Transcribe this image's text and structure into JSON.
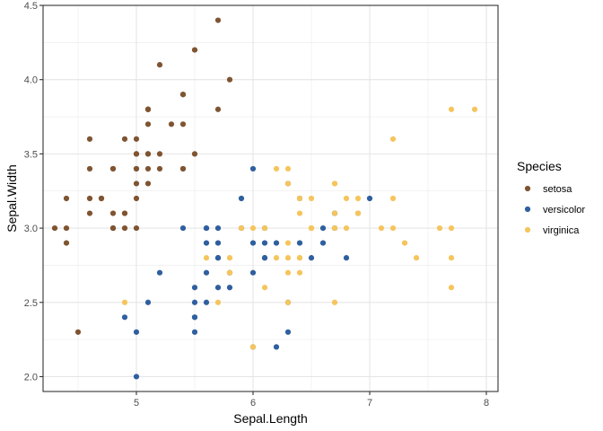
{
  "chart_data": {
    "type": "scatter",
    "xlabel": "Sepal.Length",
    "ylabel": "Sepal.Width",
    "xlim": [
      4.2,
      8.1
    ],
    "ylim": [
      1.9,
      4.5
    ],
    "x_ticks": [
      "5",
      "6",
      "7",
      "8"
    ],
    "y_ticks": [
      "2.0",
      "2.5",
      "3.0",
      "3.5",
      "4.0",
      "4.5"
    ],
    "grid": true,
    "legend": {
      "title": "Species",
      "position": "right"
    },
    "series": [
      {
        "name": "setosa",
        "color": "#7f5431",
        "points": [
          [
            5.1,
            3.5
          ],
          [
            4.9,
            3.0
          ],
          [
            4.7,
            3.2
          ],
          [
            4.6,
            3.1
          ],
          [
            5.0,
            3.6
          ],
          [
            5.4,
            3.9
          ],
          [
            4.6,
            3.4
          ],
          [
            5.0,
            3.4
          ],
          [
            4.4,
            2.9
          ],
          [
            4.9,
            3.1
          ],
          [
            5.4,
            3.7
          ],
          [
            4.8,
            3.4
          ],
          [
            4.8,
            3.0
          ],
          [
            4.3,
            3.0
          ],
          [
            5.8,
            4.0
          ],
          [
            5.7,
            4.4
          ],
          [
            5.4,
            3.9
          ],
          [
            5.1,
            3.5
          ],
          [
            5.7,
            3.8
          ],
          [
            5.1,
            3.8
          ],
          [
            5.4,
            3.4
          ],
          [
            5.1,
            3.7
          ],
          [
            4.6,
            3.6
          ],
          [
            5.1,
            3.3
          ],
          [
            4.8,
            3.4
          ],
          [
            5.0,
            3.0
          ],
          [
            5.0,
            3.4
          ],
          [
            5.2,
            3.5
          ],
          [
            5.2,
            3.4
          ],
          [
            4.7,
            3.2
          ],
          [
            4.8,
            3.1
          ],
          [
            5.4,
            3.4
          ],
          [
            5.2,
            4.1
          ],
          [
            5.5,
            4.2
          ],
          [
            4.9,
            3.1
          ],
          [
            5.0,
            3.2
          ],
          [
            5.5,
            3.5
          ],
          [
            4.9,
            3.6
          ],
          [
            4.4,
            3.0
          ],
          [
            5.1,
            3.4
          ],
          [
            5.0,
            3.5
          ],
          [
            4.5,
            2.3
          ],
          [
            4.4,
            3.2
          ],
          [
            5.0,
            3.5
          ],
          [
            5.1,
            3.8
          ],
          [
            4.8,
            3.0
          ],
          [
            5.1,
            3.8
          ],
          [
            4.6,
            3.2
          ],
          [
            5.3,
            3.7
          ],
          [
            5.0,
            3.3
          ]
        ]
      },
      {
        "name": "versicolor",
        "color": "#2f5f9f",
        "points": [
          [
            7.0,
            3.2
          ],
          [
            6.4,
            3.2
          ],
          [
            6.9,
            3.1
          ],
          [
            5.5,
            2.3
          ],
          [
            6.5,
            2.8
          ],
          [
            5.7,
            2.8
          ],
          [
            6.3,
            3.3
          ],
          [
            4.9,
            2.4
          ],
          [
            6.6,
            2.9
          ],
          [
            5.2,
            2.7
          ],
          [
            5.0,
            2.0
          ],
          [
            5.9,
            3.0
          ],
          [
            6.0,
            2.2
          ],
          [
            6.1,
            2.9
          ],
          [
            5.6,
            2.9
          ],
          [
            6.7,
            3.1
          ],
          [
            5.6,
            3.0
          ],
          [
            5.8,
            2.7
          ],
          [
            6.2,
            2.2
          ],
          [
            5.6,
            2.5
          ],
          [
            5.9,
            3.2
          ],
          [
            6.1,
            2.8
          ],
          [
            6.3,
            2.5
          ],
          [
            6.1,
            2.8
          ],
          [
            6.4,
            2.9
          ],
          [
            6.6,
            3.0
          ],
          [
            6.8,
            2.8
          ],
          [
            6.7,
            3.0
          ],
          [
            6.0,
            2.9
          ],
          [
            5.7,
            2.6
          ],
          [
            5.5,
            2.4
          ],
          [
            5.5,
            2.4
          ],
          [
            5.8,
            2.7
          ],
          [
            6.0,
            2.7
          ],
          [
            5.4,
            3.0
          ],
          [
            6.0,
            3.4
          ],
          [
            6.7,
            3.1
          ],
          [
            6.3,
            2.3
          ],
          [
            5.6,
            3.0
          ],
          [
            5.5,
            2.5
          ],
          [
            5.5,
            2.6
          ],
          [
            6.1,
            3.0
          ],
          [
            5.8,
            2.6
          ],
          [
            5.0,
            2.3
          ],
          [
            5.6,
            2.7
          ],
          [
            5.7,
            3.0
          ],
          [
            5.7,
            2.9
          ],
          [
            6.2,
            2.9
          ],
          [
            5.1,
            2.5
          ],
          [
            5.7,
            2.8
          ]
        ]
      },
      {
        "name": "virginica",
        "color": "#f5c55c",
        "points": [
          [
            6.3,
            3.3
          ],
          [
            5.8,
            2.7
          ],
          [
            7.1,
            3.0
          ],
          [
            6.3,
            2.9
          ],
          [
            6.5,
            3.0
          ],
          [
            7.6,
            3.0
          ],
          [
            4.9,
            2.5
          ],
          [
            7.3,
            2.9
          ],
          [
            6.7,
            2.5
          ],
          [
            7.2,
            3.6
          ],
          [
            6.5,
            3.2
          ],
          [
            6.4,
            2.7
          ],
          [
            6.8,
            3.0
          ],
          [
            5.7,
            2.5
          ],
          [
            5.8,
            2.8
          ],
          [
            6.4,
            3.2
          ],
          [
            6.5,
            3.0
          ],
          [
            7.7,
            3.8
          ],
          [
            7.7,
            2.6
          ],
          [
            6.0,
            2.2
          ],
          [
            6.9,
            3.2
          ],
          [
            5.6,
            2.8
          ],
          [
            7.7,
            2.8
          ],
          [
            6.3,
            2.7
          ],
          [
            6.7,
            3.3
          ],
          [
            7.2,
            3.2
          ],
          [
            6.2,
            2.8
          ],
          [
            6.1,
            3.0
          ],
          [
            6.4,
            2.8
          ],
          [
            7.2,
            3.0
          ],
          [
            7.4,
            2.8
          ],
          [
            7.9,
            3.8
          ],
          [
            6.4,
            2.8
          ],
          [
            6.3,
            2.8
          ],
          [
            6.1,
            2.6
          ],
          [
            7.7,
            3.0
          ],
          [
            6.3,
            3.4
          ],
          [
            6.4,
            3.1
          ],
          [
            6.0,
            3.0
          ],
          [
            6.9,
            3.1
          ],
          [
            6.7,
            3.1
          ],
          [
            6.9,
            3.1
          ],
          [
            5.8,
            2.7
          ],
          [
            6.8,
            3.2
          ],
          [
            6.7,
            3.3
          ],
          [
            6.7,
            3.0
          ],
          [
            6.3,
            2.5
          ],
          [
            6.5,
            3.0
          ],
          [
            6.2,
            3.4
          ],
          [
            5.9,
            3.0
          ]
        ]
      }
    ]
  }
}
